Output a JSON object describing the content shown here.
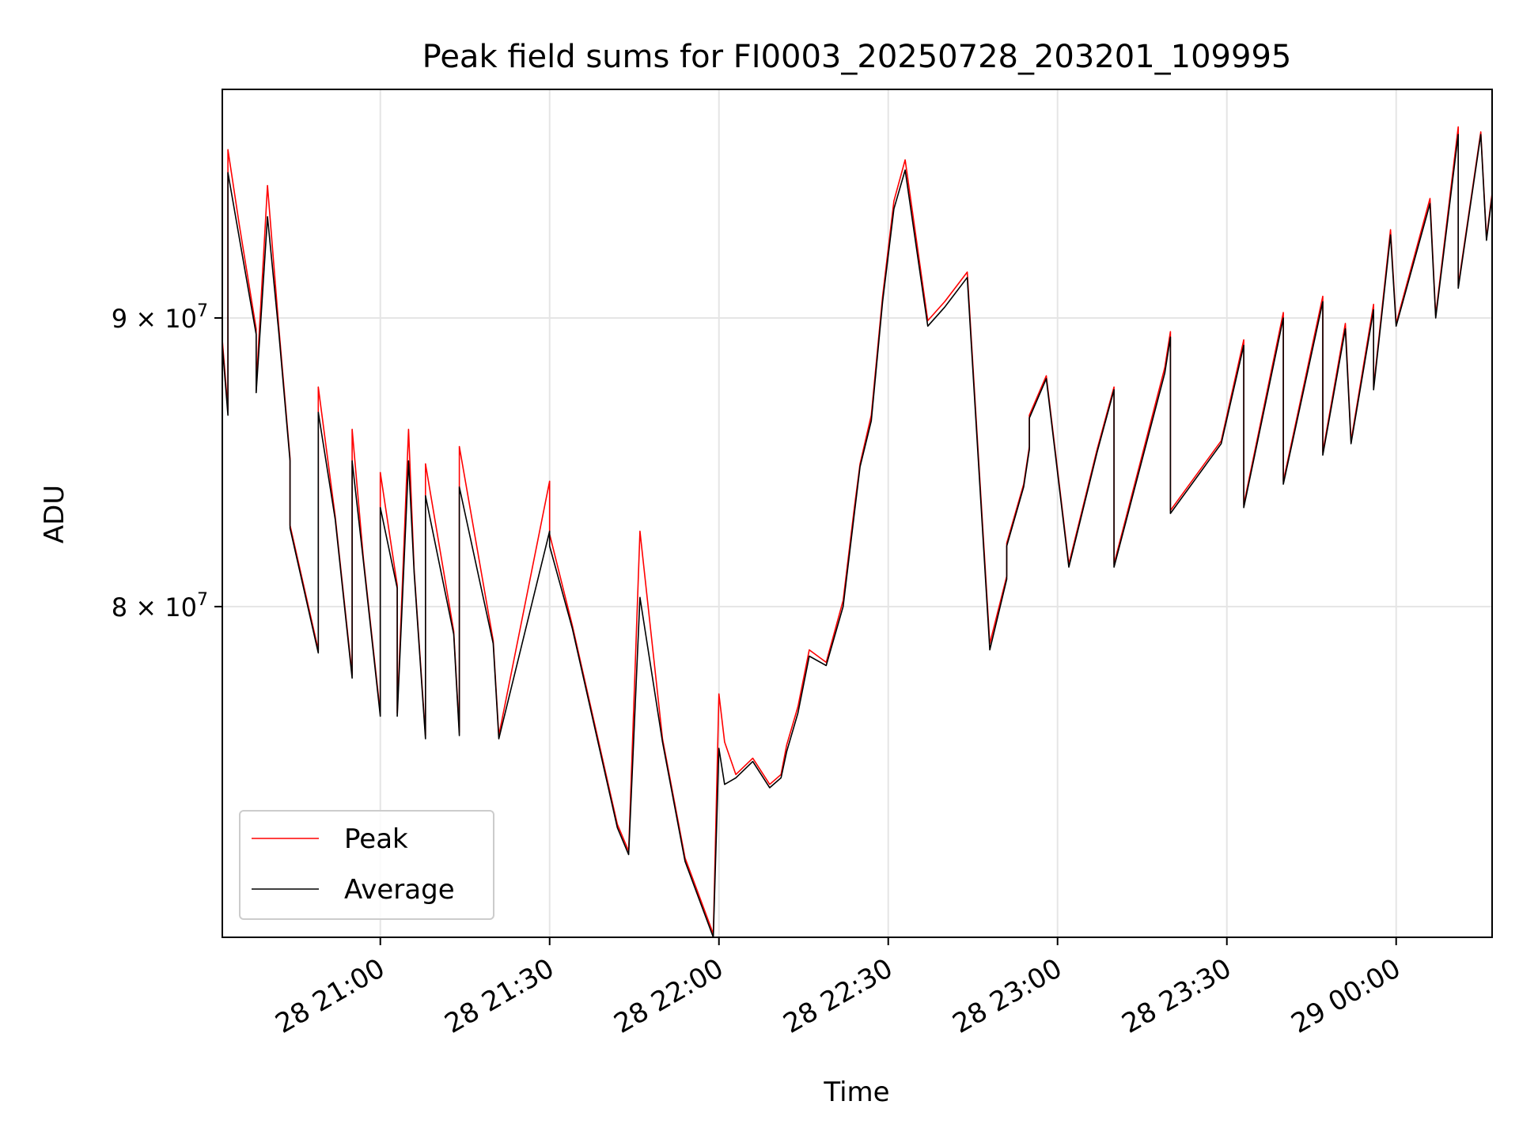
{
  "chart_data": {
    "type": "line",
    "title": "Peak field sums for FI0003_20250728_203201_109995",
    "xlabel": "Time",
    "ylabel": "ADU",
    "x_axis_type": "datetime",
    "xlim": [
      "2025-07-28 20:32",
      "2025-07-29 00:17"
    ],
    "ylim": [
      69900000,
      98800000
    ],
    "y_scale": "log",
    "grid": true,
    "legend_position": "lower-left",
    "x_ticks": [
      {
        "value": "2025-07-28 21:00",
        "label": "28 21:00"
      },
      {
        "value": "2025-07-28 21:30",
        "label": "28 21:30"
      },
      {
        "value": "2025-07-28 22:00",
        "label": "28 22:00"
      },
      {
        "value": "2025-07-28 22:30",
        "label": "28 22:30"
      },
      {
        "value": "2025-07-28 23:00",
        "label": "28 23:00"
      },
      {
        "value": "2025-07-28 23:30",
        "label": "28 23:30"
      },
      {
        "value": "2025-07-29 00:00",
        "label": "29 00:00"
      }
    ],
    "y_ticks": [
      {
        "value": 80000000,
        "base": "8 × 10",
        "exp": "7"
      },
      {
        "value": 90000000,
        "base": "9 × 10",
        "exp": "7"
      }
    ],
    "x_points": [
      "2025-07-28 20:32",
      "2025-07-28 20:33",
      "2025-07-28 20:33",
      "2025-07-28 20:35",
      "2025-07-28 20:38",
      "2025-07-28 20:38",
      "2025-07-28 20:40",
      "2025-07-28 20:42",
      "2025-07-28 20:44",
      "2025-07-28 20:44",
      "2025-07-28 20:49",
      "2025-07-28 20:49",
      "2025-07-28 20:52",
      "2025-07-28 20:55",
      "2025-07-28 20:55",
      "2025-07-28 20:57",
      "2025-07-28 21:00",
      "2025-07-28 21:00",
      "2025-07-28 21:03",
      "2025-07-28 21:03",
      "2025-07-28 21:05",
      "2025-07-28 21:06",
      "2025-07-28 21:08",
      "2025-07-28 21:08",
      "2025-07-28 21:13",
      "2025-07-28 21:14",
      "2025-07-28 21:14",
      "2025-07-28 21:20",
      "2025-07-28 21:21",
      "2025-07-28 21:30",
      "2025-07-28 21:30",
      "2025-07-28 21:34",
      "2025-07-28 21:42",
      "2025-07-28 21:44",
      "2025-07-28 21:46",
      "2025-07-28 21:50",
      "2025-07-28 21:54",
      "2025-07-28 21:59",
      "2025-07-28 22:00",
      "2025-07-28 22:01",
      "2025-07-28 22:03",
      "2025-07-28 22:06",
      "2025-07-28 22:09",
      "2025-07-28 22:11",
      "2025-07-28 22:12",
      "2025-07-28 22:14",
      "2025-07-28 22:16",
      "2025-07-28 22:19",
      "2025-07-28 22:22",
      "2025-07-28 22:24",
      "2025-07-28 22:25",
      "2025-07-28 22:27",
      "2025-07-28 22:29",
      "2025-07-28 22:31",
      "2025-07-28 22:33",
      "2025-07-28 22:37",
      "2025-07-28 22:40",
      "2025-07-28 22:44",
      "2025-07-28 22:48",
      "2025-07-28 22:51",
      "2025-07-28 22:51",
      "2025-07-28 22:54",
      "2025-07-28 22:55",
      "2025-07-28 22:55",
      "2025-07-28 22:58",
      "2025-07-28 23:02",
      "2025-07-28 23:07",
      "2025-07-28 23:10",
      "2025-07-28 23:10",
      "2025-07-28 23:19",
      "2025-07-28 23:20",
      "2025-07-28 23:20",
      "2025-07-28 23:29",
      "2025-07-28 23:33",
      "2025-07-28 23:33",
      "2025-07-28 23:40",
      "2025-07-28 23:40",
      "2025-07-28 23:47",
      "2025-07-28 23:47",
      "2025-07-28 23:51",
      "2025-07-28 23:52",
      "2025-07-28 23:56",
      "2025-07-28 23:56",
      "2025-07-28 23:59",
      "2025-07-29 00:00",
      "2025-07-29 00:06",
      "2025-07-29 00:07",
      "2025-07-29 00:11",
      "2025-07-29 00:11",
      "2025-07-29 00:15",
      "2025-07-29 00:16",
      "2025-07-29 00:17"
    ],
    "series": [
      {
        "name": "Peak",
        "color": "#ff0000",
        "values": [
          89200000,
          86700000,
          96400000,
          93500000,
          89600000,
          87500000,
          95000000,
          89700000,
          85000000,
          82700000,
          78600000,
          87500000,
          83000000,
          77800000,
          86000000,
          81600000,
          76600000,
          84500000,
          80700000,
          76600000,
          86000000,
          81200000,
          75900000,
          84800000,
          79200000,
          76000000,
          85400000,
          78900000,
          75900000,
          84200000,
          82400000,
          79400000,
          73200000,
          72400000,
          82500000,
          75800000,
          72200000,
          70000000,
          77200000,
          75700000,
          74700000,
          75200000,
          74400000,
          74700000,
          75600000,
          76800000,
          78600000,
          78200000,
          80200000,
          83300000,
          84800000,
          86500000,
          90800000,
          94400000,
          96000000,
          89900000,
          90600000,
          91700000,
          78800000,
          81000000,
          82100000,
          84100000,
          85400000,
          86500000,
          87900000,
          81400000,
          85300000,
          87500000,
          81400000,
          88200000,
          89500000,
          83200000,
          85600000,
          89200000,
          83400000,
          90200000,
          84200000,
          90800000,
          85200000,
          89800000,
          85600000,
          90500000,
          87500000,
          93300000,
          89800000,
          94500000,
          90100000,
          97300000,
          91200000,
          97100000,
          93000000,
          94700000
        ]
      },
      {
        "name": "Average",
        "color": "#000000",
        "values": [
          89000000,
          86500000,
          95500000,
          93000000,
          89400000,
          87300000,
          93800000,
          89500000,
          84900000,
          82600000,
          78500000,
          86600000,
          82900000,
          77700000,
          84900000,
          81500000,
          76500000,
          83300000,
          80600000,
          76500000,
          84900000,
          81100000,
          75800000,
          83700000,
          79100000,
          75900000,
          84000000,
          78800000,
          75800000,
          82500000,
          82000000,
          79300000,
          73100000,
          72300000,
          80300000,
          75700000,
          72100000,
          69900000,
          75500000,
          74400000,
          74600000,
          75100000,
          74300000,
          74600000,
          75400000,
          76600000,
          78400000,
          78100000,
          80000000,
          83100000,
          84700000,
          86300000,
          90600000,
          94100000,
          95600000,
          89700000,
          90400000,
          91500000,
          78600000,
          80900000,
          82000000,
          84000000,
          85300000,
          86400000,
          87800000,
          81300000,
          85200000,
          87400000,
          81300000,
          88000000,
          89300000,
          83100000,
          85500000,
          89000000,
          83300000,
          90000000,
          84100000,
          90600000,
          85100000,
          89600000,
          85500000,
          90300000,
          87400000,
          93100000,
          89700000,
          94300000,
          90000000,
          97000000,
          91100000,
          97000000,
          92900000,
          94600000
        ]
      }
    ]
  }
}
